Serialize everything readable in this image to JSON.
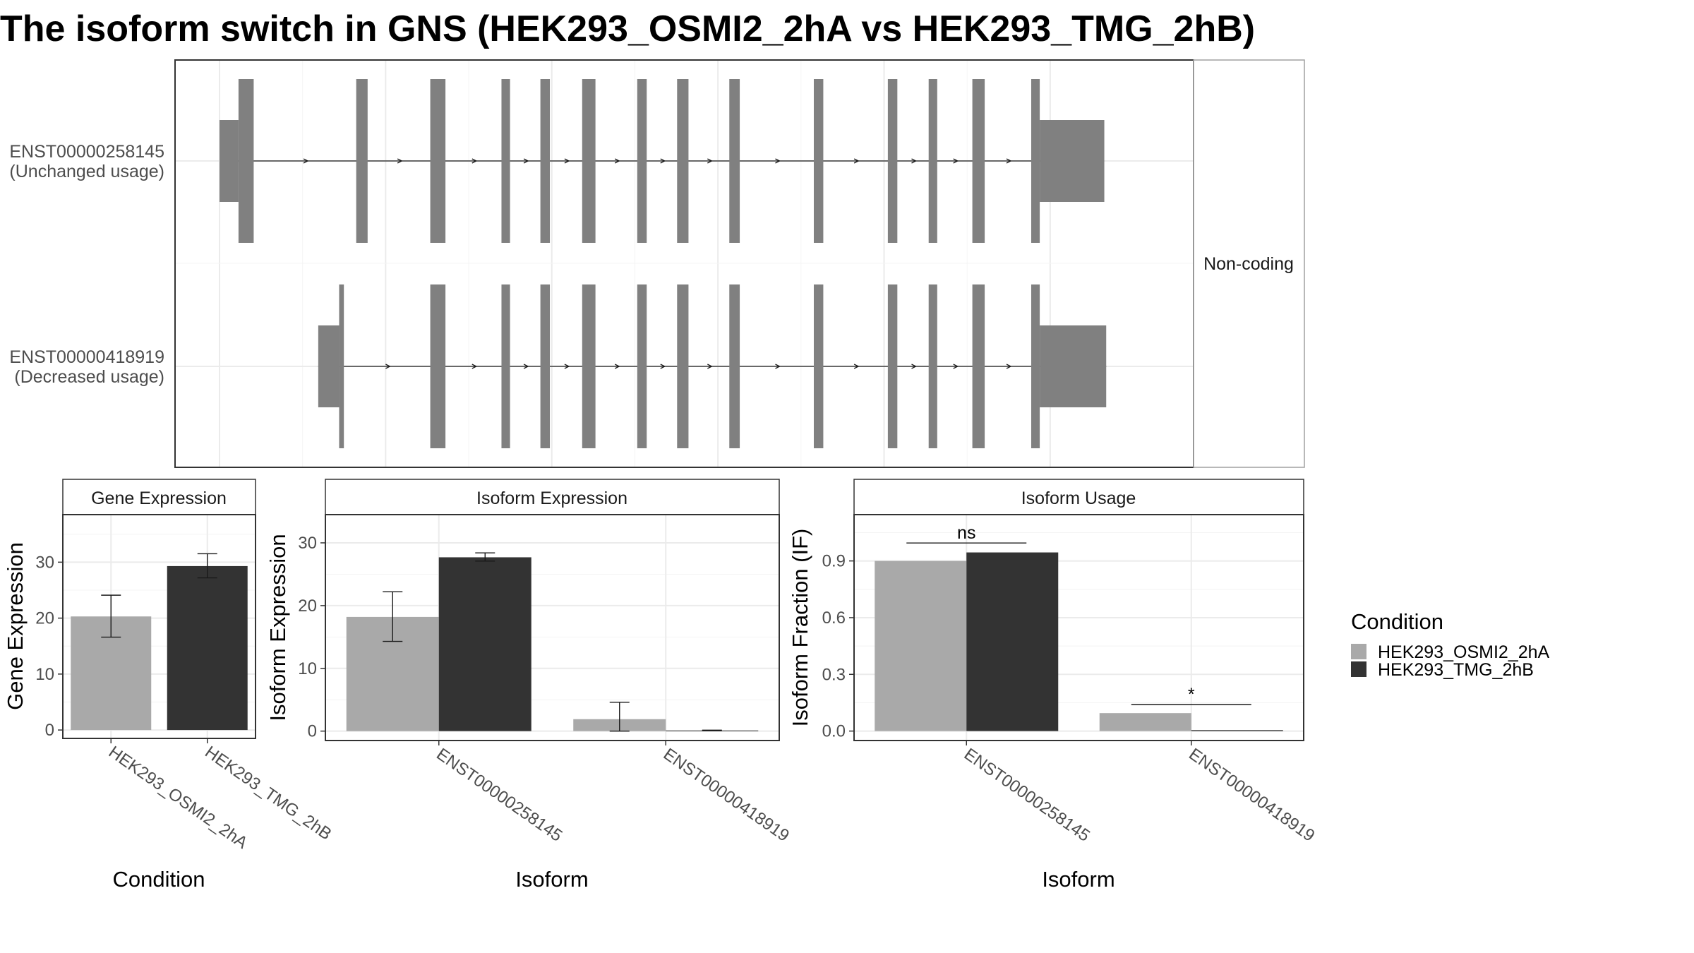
{
  "title": "The isoform switch in GNS (HEK293_OSMI2_2hA vs HEK293_TMG_2hB)",
  "colors": {
    "exon": "#808080",
    "cond_a": "#a9a9a9",
    "cond_b": "#333333",
    "panel_border": "#333333",
    "strip_fill": "#ffffff",
    "grid": "#ebebeb"
  },
  "transcript_panel": {
    "strip_label": "Non-coding",
    "transcripts": [
      {
        "id": "ENST00000258145",
        "usage": "(Unchanged usage)",
        "exons": [
          {
            "start": 0,
            "end": 2,
            "kind": "utr"
          },
          {
            "start": 2,
            "end": 3.6,
            "kind": "cds"
          },
          {
            "start": 14.4,
            "end": 15.6,
            "kind": "cds"
          },
          {
            "start": 22.2,
            "end": 23.8,
            "kind": "cds"
          },
          {
            "start": 29.7,
            "end": 30.6,
            "kind": "cds"
          },
          {
            "start": 33.8,
            "end": 34.8,
            "kind": "cds"
          },
          {
            "start": 38.2,
            "end": 39.6,
            "kind": "cds"
          },
          {
            "start": 44,
            "end": 45,
            "kind": "cds"
          },
          {
            "start": 48.2,
            "end": 49.4,
            "kind": "cds"
          },
          {
            "start": 53.7,
            "end": 54.8,
            "kind": "cds"
          },
          {
            "start": 62.6,
            "end": 63.6,
            "kind": "cds"
          },
          {
            "start": 70.4,
            "end": 71.4,
            "kind": "cds"
          },
          {
            "start": 74.7,
            "end": 75.6,
            "kind": "cds"
          },
          {
            "start": 79.3,
            "end": 80.6,
            "kind": "cds"
          },
          {
            "start": 85.5,
            "end": 86.4,
            "kind": "cds"
          },
          {
            "start": 86.4,
            "end": 93.2,
            "kind": "utr"
          }
        ]
      },
      {
        "id": "ENST00000418919",
        "usage": "(Decreased usage)",
        "exons": [
          {
            "start": 10.4,
            "end": 12.6,
            "kind": "utr"
          },
          {
            "start": 12.6,
            "end": 13.1,
            "kind": "cds"
          },
          {
            "start": 22.2,
            "end": 23.8,
            "kind": "cds"
          },
          {
            "start": 29.7,
            "end": 30.6,
            "kind": "cds"
          },
          {
            "start": 33.8,
            "end": 34.8,
            "kind": "cds"
          },
          {
            "start": 38.2,
            "end": 39.6,
            "kind": "cds"
          },
          {
            "start": 44,
            "end": 45,
            "kind": "cds"
          },
          {
            "start": 48.2,
            "end": 49.4,
            "kind": "cds"
          },
          {
            "start": 53.7,
            "end": 54.8,
            "kind": "cds"
          },
          {
            "start": 62.6,
            "end": 63.6,
            "kind": "cds"
          },
          {
            "start": 70.4,
            "end": 71.4,
            "kind": "cds"
          },
          {
            "start": 74.7,
            "end": 75.6,
            "kind": "cds"
          },
          {
            "start": 79.3,
            "end": 80.6,
            "kind": "cds"
          },
          {
            "start": 85.5,
            "end": 86.4,
            "kind": "cds"
          },
          {
            "start": 86.4,
            "end": 93.4,
            "kind": "utr"
          }
        ]
      }
    ]
  },
  "chart_data": [
    {
      "type": "bar",
      "title": "Gene Expression",
      "xlabel": "Condition",
      "ylabel": "Gene Expression",
      "ylim": [
        -1.5,
        38.5
      ],
      "yticks": [
        0,
        10,
        20,
        30
      ],
      "categories": [
        "HEK293_OSMI2_2hA",
        "HEK293_TMG_2hB"
      ],
      "series": [
        {
          "name": "HEK293_OSMI2_2hA",
          "values": [
            20.3,
            null
          ],
          "err_low": [
            16.6,
            null
          ],
          "err_high": [
            24.1,
            null
          ]
        },
        {
          "name": "HEK293_TMG_2hB",
          "values": [
            null,
            29.3
          ],
          "err_low": [
            null,
            27.2
          ],
          "err_high": [
            null,
            31.5
          ]
        }
      ]
    },
    {
      "type": "bar",
      "title": "Isoform Expression",
      "xlabel": "Isoform",
      "ylabel": "Isoform Expression",
      "ylim": [
        -1.5,
        34.5
      ],
      "yticks": [
        0,
        10,
        20,
        30
      ],
      "categories": [
        "ENST00000258145",
        "ENST00000418919"
      ],
      "series": [
        {
          "name": "HEK293_OSMI2_2hA",
          "values": [
            18.2,
            1.9
          ],
          "err_low": [
            14.3,
            0
          ],
          "err_high": [
            22.2,
            4.6
          ]
        },
        {
          "name": "HEK293_TMG_2hB",
          "values": [
            27.7,
            0.1
          ],
          "err_low": [
            27.1,
            0.05
          ],
          "err_high": [
            28.4,
            0.15
          ]
        }
      ]
    },
    {
      "type": "bar",
      "title": "Isoform Usage",
      "xlabel": "Isoform",
      "ylabel": "Isoform Fraction (IF)",
      "ylim": [
        -0.05,
        1.145
      ],
      "yticks": [
        0.0,
        0.3,
        0.6,
        0.9
      ],
      "ytick_labels": [
        "0.0",
        "0.3",
        "0.6",
        "0.9"
      ],
      "categories": [
        "ENST00000258145",
        "ENST00000418919"
      ],
      "series": [
        {
          "name": "HEK293_OSMI2_2hA",
          "values": [
            0.9,
            0.095
          ]
        },
        {
          "name": "HEK293_TMG_2hB",
          "values": [
            0.945,
            0.005
          ]
        }
      ],
      "annotations": [
        {
          "category": 0,
          "text": "ns",
          "y": 0.995
        },
        {
          "category": 1,
          "text": "*",
          "y": 0.14
        }
      ]
    }
  ],
  "legend": {
    "title": "Condition",
    "items": [
      {
        "label": "HEK293_OSMI2_2hA",
        "color": "#a9a9a9"
      },
      {
        "label": "HEK293_TMG_2hB",
        "color": "#333333"
      }
    ]
  }
}
